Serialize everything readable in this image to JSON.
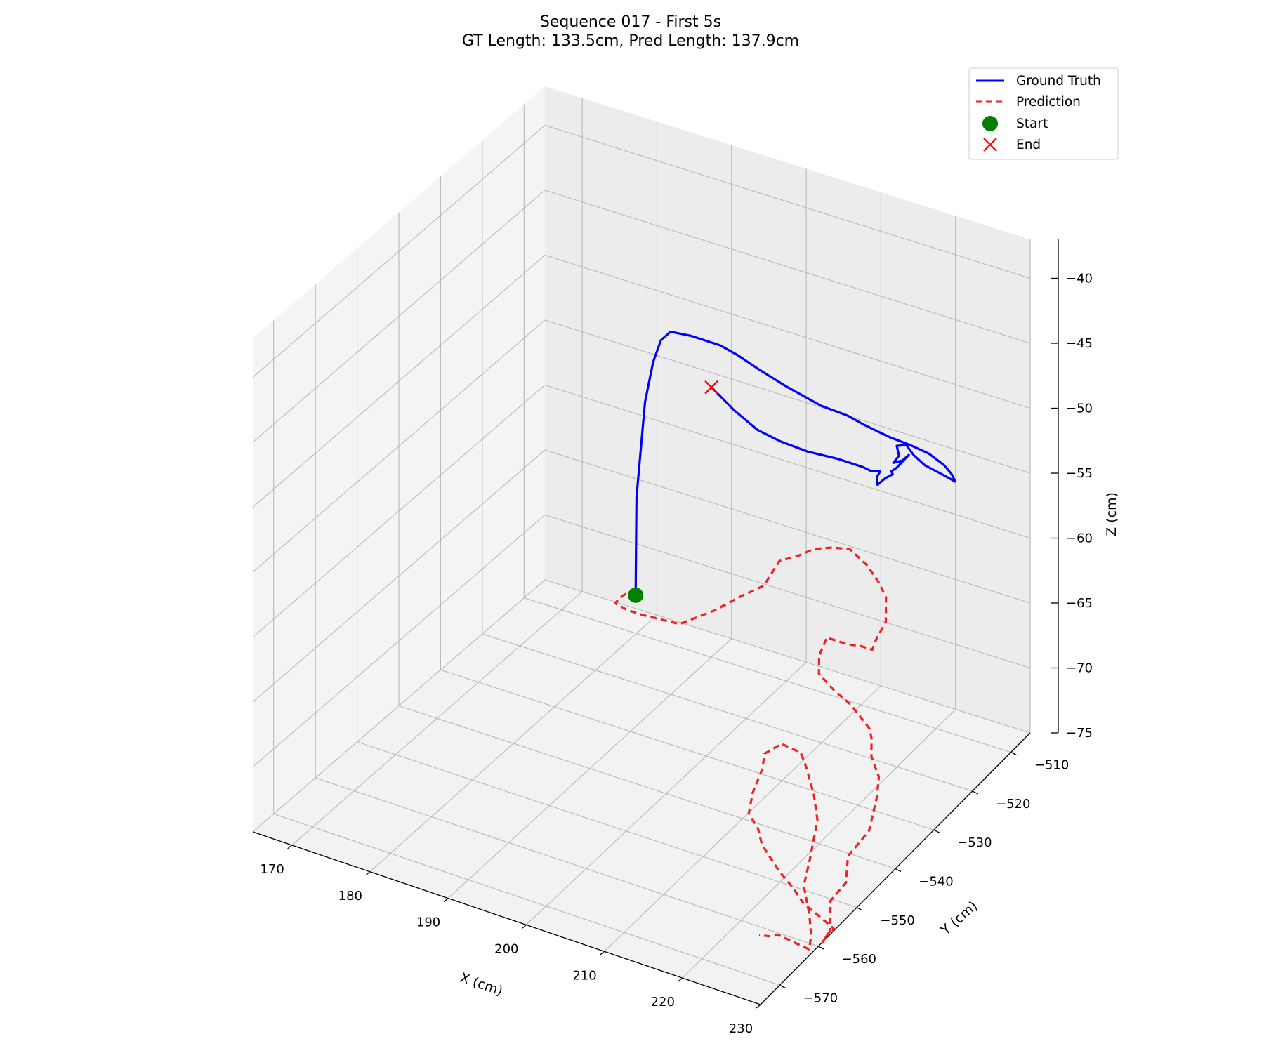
{
  "chart_data": {
    "type": "3d-line",
    "title": "Sequence 017 - First 5s",
    "subtitle": "GT Length: 133.5cm, Pred Length: 137.9cm",
    "xlabel": "X (cm)",
    "ylabel": "Y (cm)",
    "zlabel": "Z (cm)",
    "xlim": [
      165,
      230
    ],
    "ylim": [
      -575,
      -505
    ],
    "zlim": [
      -75,
      -37
    ],
    "x_ticks": [
      170,
      180,
      190,
      200,
      210,
      220,
      230
    ],
    "y_ticks": [
      -510,
      -520,
      -530,
      -540,
      -550,
      -560,
      -570
    ],
    "z_ticks": [
      -40,
      -45,
      -50,
      -55,
      -60,
      -65,
      -70,
      -75
    ],
    "x_tick_labels": [
      "170",
      "180",
      "190",
      "200",
      "210",
      "220",
      "230"
    ],
    "y_tick_labels": [
      "−510",
      "−520",
      "−530",
      "−540",
      "−550",
      "−560",
      "−570"
    ],
    "z_tick_labels": [
      "−40",
      "−45",
      "−50",
      "−55",
      "−60",
      "−65",
      "−70",
      "−75"
    ],
    "grid": true,
    "legend_position": "upper right",
    "series": [
      {
        "name": "Ground Truth",
        "style": "solid",
        "color": "#0000ff",
        "points": [
          [
            196.0,
            -540.0,
            -60.5
          ],
          [
            195.0,
            -538.0,
            -57.5
          ],
          [
            194.0,
            -536.0,
            -54.5
          ],
          [
            193.5,
            -534.0,
            -51.5
          ],
          [
            193.0,
            -532.0,
            -48.5
          ],
          [
            193.0,
            -530.0,
            -46.0
          ],
          [
            193.5,
            -529.0,
            -44.5
          ],
          [
            194.5,
            -528.5,
            -43.8
          ],
          [
            197.0,
            -528.0,
            -43.8
          ],
          [
            200.5,
            -527.5,
            -44.0
          ],
          [
            202.5,
            -527.0,
            -44.5
          ],
          [
            205.0,
            -526.0,
            -45.5
          ],
          [
            208.0,
            -525.0,
            -46.5
          ],
          [
            212.0,
            -524.0,
            -47.5
          ],
          [
            215.0,
            -523.0,
            -48.0
          ],
          [
            217.0,
            -522.5,
            -48.5
          ],
          [
            220.0,
            -522.0,
            -49.0
          ],
          [
            222.5,
            -521.5,
            -49.3
          ],
          [
            225.0,
            -521.5,
            -49.5
          ],
          [
            227.0,
            -521.5,
            -50.0
          ],
          [
            228.0,
            -521.5,
            -50.5
          ],
          [
            228.5,
            -521.5,
            -51.0
          ],
          [
            227.0,
            -521.5,
            -50.8
          ],
          [
            224.5,
            -521.5,
            -50.5
          ],
          [
            223.0,
            -521.5,
            -50.0
          ],
          [
            222.0,
            -521.5,
            -49.4
          ],
          [
            221.0,
            -522.0,
            -49.5
          ],
          [
            221.3,
            -522.0,
            -50.2
          ],
          [
            220.8,
            -522.5,
            -50.7
          ],
          [
            222.0,
            -522.5,
            -50.3
          ],
          [
            222.6,
            -522.0,
            -49.9
          ],
          [
            221.5,
            -523.0,
            -50.8
          ],
          [
            220.8,
            -523.0,
            -51.2
          ],
          [
            221.5,
            -524.0,
            -51.0
          ],
          [
            220.5,
            -524.0,
            -51.5
          ],
          [
            220.0,
            -525.0,
            -51.8
          ],
          [
            220.2,
            -525.5,
            -51.0
          ],
          [
            220.6,
            -525.5,
            -50.5
          ],
          [
            219.6,
            -526.0,
            -50.5
          ],
          [
            218.6,
            -526.0,
            -50.4
          ],
          [
            215.5,
            -526.5,
            -50.2
          ],
          [
            212.0,
            -527.5,
            -50.0
          ],
          [
            209.0,
            -528.5,
            -49.5
          ],
          [
            206.5,
            -529.5,
            -48.8
          ],
          [
            204.0,
            -530.5,
            -47.5
          ],
          [
            203.0,
            -531.5,
            -46.5
          ],
          [
            202.0,
            -532.5,
            -45.5
          ]
        ]
      },
      {
        "name": "Prediction",
        "style": "dashed",
        "color": "#ee2222",
        "points": [
          [
            196.0,
            -540.0,
            -60.5
          ],
          [
            193.0,
            -536.0,
            -62.0
          ],
          [
            190.0,
            -532.0,
            -64.0
          ],
          [
            188.0,
            -530.0,
            -65.5
          ],
          [
            188.5,
            -528.0,
            -66.5
          ],
          [
            190.5,
            -528.0,
            -66.5
          ],
          [
            193.5,
            -529.0,
            -66.0
          ],
          [
            196.5,
            -530.0,
            -65.5
          ],
          [
            200.5,
            -529.0,
            -64.0
          ],
          [
            203.0,
            -527.0,
            -63.0
          ],
          [
            205.5,
            -526.0,
            -62.0
          ],
          [
            206.5,
            -524.0,
            -60.5
          ],
          [
            208.5,
            -523.0,
            -60.0
          ],
          [
            210.0,
            -522.0,
            -59.5
          ],
          [
            212.0,
            -521.0,
            -59.3
          ],
          [
            213.5,
            -519.5,
            -59.6
          ],
          [
            215.0,
            -518.0,
            -61.0
          ],
          [
            216.5,
            -518.0,
            -62.0
          ],
          [
            217.5,
            -518.0,
            -63.0
          ],
          [
            218.0,
            -519.0,
            -64.5
          ],
          [
            217.5,
            -520.5,
            -65.5
          ],
          [
            217.5,
            -521.5,
            -66.0
          ],
          [
            216.0,
            -521.5,
            -66.0
          ],
          [
            214.5,
            -522.0,
            -66.0
          ],
          [
            212.0,
            -522.5,
            -65.8
          ],
          [
            211.5,
            -523.5,
            -67.0
          ],
          [
            212.0,
            -524.5,
            -68.0
          ],
          [
            214.5,
            -525.5,
            -68.5
          ],
          [
            217.0,
            -526.0,
            -69.0
          ],
          [
            220.0,
            -527.0,
            -70.0
          ],
          [
            220.5,
            -527.5,
            -70.5
          ],
          [
            221.0,
            -528.5,
            -71.5
          ],
          [
            222.5,
            -529.5,
            -72.5
          ],
          [
            223.0,
            -531.0,
            -73.5
          ],
          [
            223.0,
            -532.0,
            -74.5
          ],
          [
            223.0,
            -533.0,
            -75.5
          ],
          [
            221.5,
            -535.5,
            -77.0
          ],
          [
            222.0,
            -537.0,
            -78.5
          ],
          [
            221.0,
            -539.0,
            -79.5
          ],
          [
            222.0,
            -541.0,
            -81.0
          ],
          [
            222.0,
            -543.0,
            -81.3
          ],
          [
            223.0,
            -543.5,
            -80.3
          ],
          [
            224.0,
            -544.5,
            -79.7
          ],
          [
            224.5,
            -545.0,
            -79.2
          ],
          [
            221.0,
            -542.5,
            -79.5
          ],
          [
            218.5,
            -541.0,
            -79.6
          ],
          [
            216.5,
            -540.0,
            -79.0
          ],
          [
            214.5,
            -539.5,
            -78.3
          ],
          [
            211.5,
            -538.0,
            -77.3
          ],
          [
            210.5,
            -537.0,
            -76.6
          ],
          [
            209.0,
            -536.5,
            -75.8
          ],
          [
            209.0,
            -535.5,
            -74.5
          ],
          [
            209.5,
            -534.0,
            -73.0
          ],
          [
            209.5,
            -533.5,
            -72.0
          ],
          [
            211.5,
            -533.0,
            -71.0
          ],
          [
            214.0,
            -533.0,
            -71.2
          ],
          [
            215.0,
            -533.5,
            -72.0
          ],
          [
            216.5,
            -534.5,
            -73.5
          ],
          [
            217.5,
            -535.5,
            -75.0
          ],
          [
            217.5,
            -537.5,
            -77.5
          ],
          [
            217.5,
            -539.0,
            -79.0
          ],
          [
            219.0,
            -540.5,
            -80.5
          ],
          [
            220.0,
            -542.0,
            -81.5
          ],
          [
            220.5,
            -543.5,
            -82.0
          ],
          [
            219.5,
            -544.5,
            -81.5
          ],
          [
            219.0,
            -545.5,
            -81.0
          ],
          [
            218.0,
            -546.5,
            -80.5
          ],
          [
            217.0,
            -546.5,
            -80.8
          ],
          [
            215.5,
            -546.5,
            -81.0
          ]
        ]
      }
    ],
    "markers": [
      {
        "name": "Start",
        "shape": "circle",
        "color": "#008000",
        "point": [
          196.0,
          -540.0,
          -60.5
        ]
      },
      {
        "name": "End",
        "shape": "x",
        "color": "#ff0000",
        "point": [
          202.0,
          -532.5,
          -45.5
        ]
      }
    ]
  }
}
